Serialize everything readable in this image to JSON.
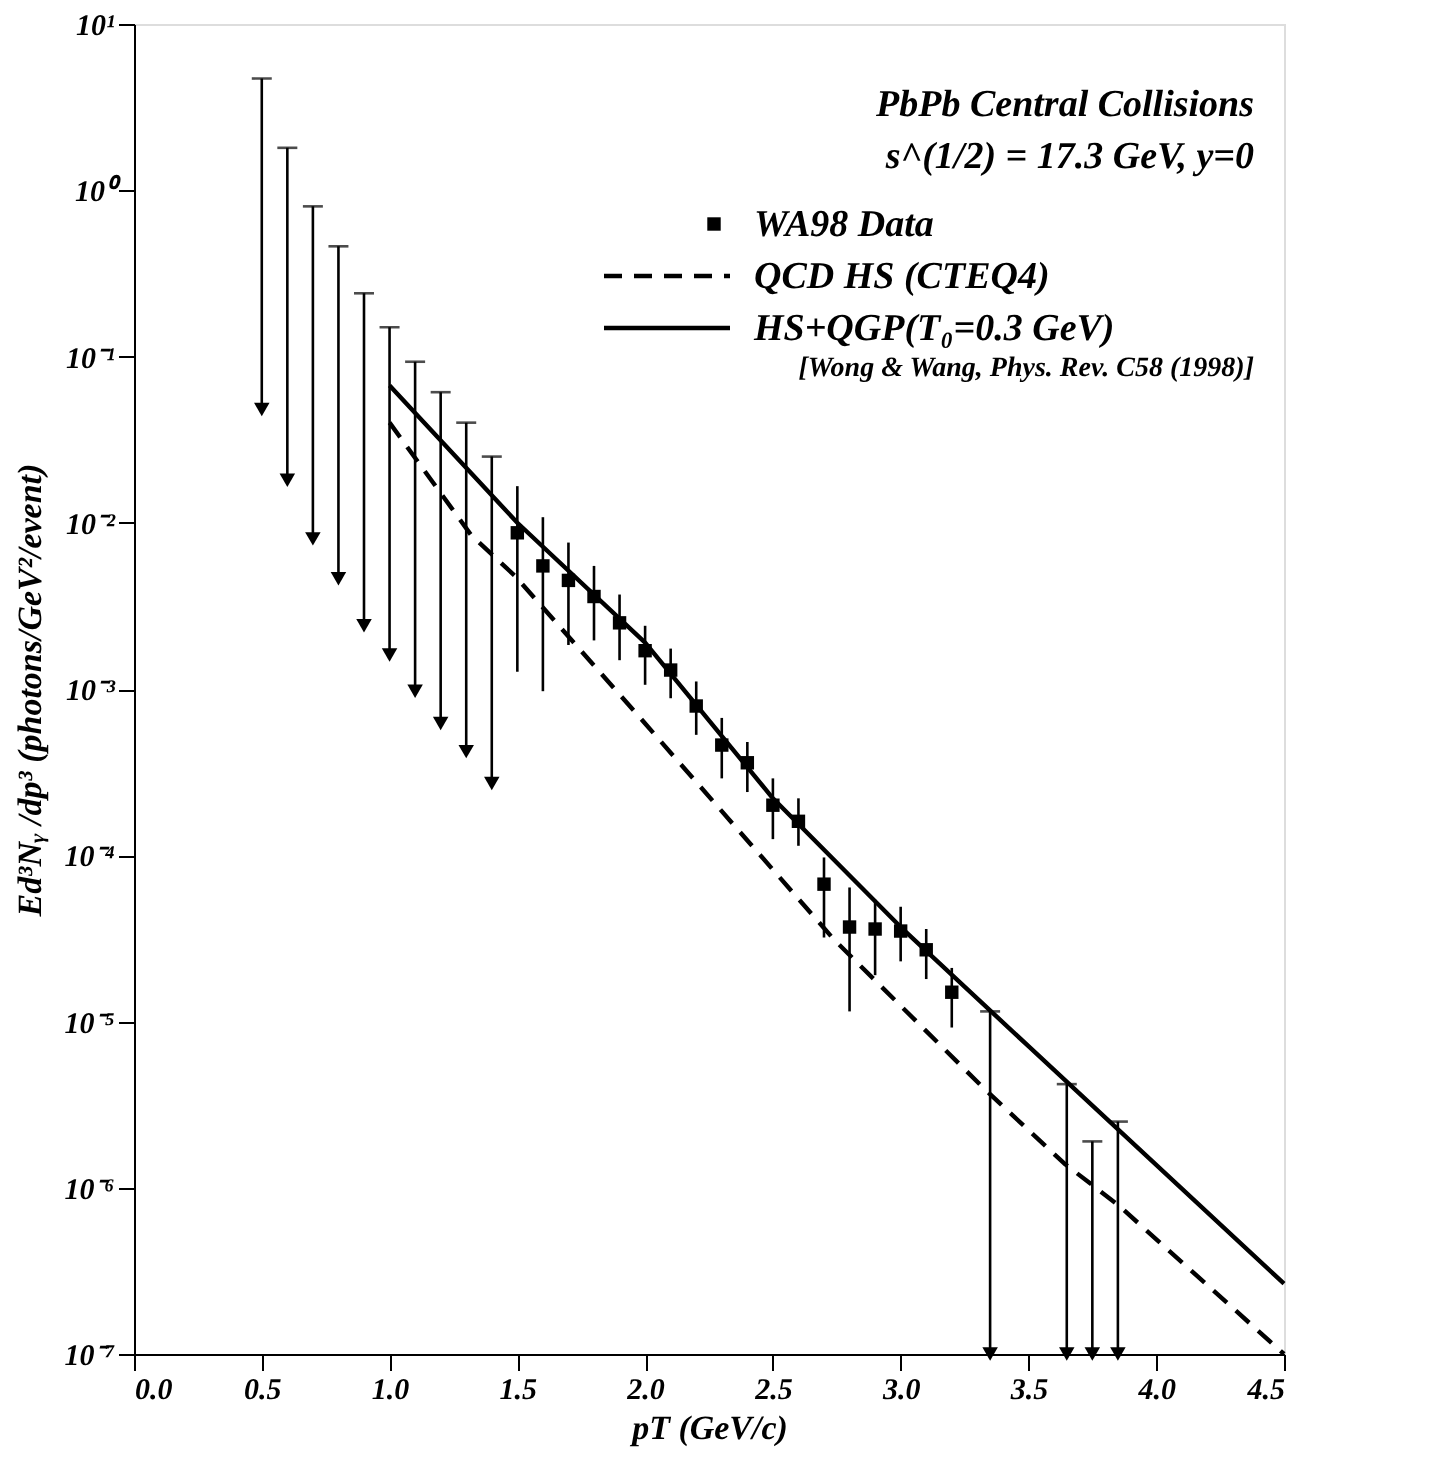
{
  "chart_data": {
    "type": "scatter",
    "xlabel": "pT (GeV/c)",
    "ylabel": "Ed³Nᵧ /dp³ (photons/GeV²/event)",
    "annotations": [
      "PbPb Central Collisions",
      "s^(1/2) = 17.3 GeV,  y=0",
      "[Wong & Wang, Phys. Rev. C58 (1998)]"
    ],
    "xlim": [
      0,
      4.5
    ],
    "ylim": [
      1e-07,
      10
    ],
    "log": "y",
    "grid": false,
    "legend": "top right",
    "xticks": [
      {
        "value": 0,
        "label": "0.0"
      },
      {
        "value": 0.5,
        "label": "0.5"
      },
      {
        "value": 1,
        "label": "1.0"
      },
      {
        "value": 1.5,
        "label": "1.5"
      },
      {
        "value": 2,
        "label": "2.0"
      },
      {
        "value": 2.5,
        "label": "2.5"
      },
      {
        "value": 3,
        "label": "3.0"
      },
      {
        "value": 3.5,
        "label": "3.5"
      },
      {
        "value": 4,
        "label": "4.0"
      },
      {
        "value": 4.5,
        "label": "4.5"
      }
    ],
    "yticks": [
      {
        "value": 1e-07,
        "label": "10⁻⁷"
      },
      {
        "value": 1e-06,
        "label": "10⁻⁶"
      },
      {
        "value": 1e-05,
        "label": "10⁻⁵"
      },
      {
        "value": 0.0001,
        "label": "10⁻⁴"
      },
      {
        "value": 0.001,
        "label": "10⁻³"
      },
      {
        "value": 0.01,
        "label": "10⁻²"
      },
      {
        "value": 0.1,
        "label": "10⁻¹"
      },
      {
        "value": 1,
        "label": "10⁰"
      },
      {
        "value": 10,
        "label": "10¹"
      }
    ],
    "series": [
      {
        "marker": "triangle",
        "color": "#000000",
        "x": [
          0.5,
          0.6,
          0.7,
          0.8,
          0.9,
          1.0,
          1.1,
          1.2,
          1.3,
          1.4,
          3.35,
          3.65,
          3.75,
          3.85
        ],
        "values": [
          0.048,
          0.018,
          0.008,
          0.0046,
          0.0024,
          0.0016,
          0.00097,
          0.00062,
          0.00042,
          0.00027,
          1e-07,
          1e-07,
          1e-07,
          1e-07
        ],
        "errors": [
          [
            0.048,
            4.7
          ],
          [
            0.018,
            1.8
          ],
          [
            0.008,
            0.8
          ],
          [
            0.0046,
            0.46
          ],
          [
            0.0024,
            0.24
          ],
          [
            0.0016,
            0.15
          ],
          [
            0.00097,
            0.093
          ],
          [
            0.00062,
            0.061
          ],
          [
            0.00042,
            0.04
          ],
          [
            0.00027,
            0.025
          ],
          [
            1e-07,
            1.15e-05
          ],
          [
            1e-07,
            4.2e-06
          ],
          [
            1e-07,
            1.9e-06
          ],
          [
            1e-07,
            2.5e-06
          ]
        ]
      },
      {
        "name": "WA98 Data",
        "marker": "square",
        "color": "#000000",
        "x": [
          1.5,
          1.6,
          1.7,
          1.8,
          1.9,
          2.0,
          2.1,
          2.2,
          2.3,
          2.4,
          2.5,
          2.6,
          2.7,
          2.8,
          2.9,
          3.0,
          3.1,
          3.2
        ],
        "values": [
          0.0087,
          0.0055,
          0.0045,
          0.0036,
          0.0025,
          0.0017,
          0.0013,
          0.00079,
          0.00046,
          0.00036,
          0.0002,
          0.00016,
          6.7e-05,
          3.7e-05,
          3.6e-05,
          3.5e-05,
          2.7e-05,
          1.5e-05
        ],
        "errors": [
          [
            0.00127,
            0.0166
          ],
          [
            0.00097,
            0.0108
          ],
          [
            0.00184,
            0.0076
          ],
          [
            0.00196,
            0.0055
          ],
          [
            0.00149,
            0.0037
          ],
          [
            0.00106,
            0.0024
          ],
          [
            0.00088,
            0.00175
          ],
          [
            0.00053,
            0.00111
          ],
          [
            0.00029,
            0.00067
          ],
          [
            0.00024,
            0.00048
          ],
          [
            0.000125,
            0.00029
          ],
          [
            0.000114,
            0.00022
          ],
          [
            3.2e-05,
            9.7e-05
          ],
          [
            1.15e-05,
            6.4e-05
          ],
          [
            1.9e-05,
            5.4e-05
          ],
          [
            2.3e-05,
            4.9e-05
          ],
          [
            1.8e-05,
            3.6e-05
          ],
          [
            9.2e-06,
            2.1e-05
          ]
        ]
      },
      {
        "name": "QCD HS (CTEQ4)",
        "type": "line",
        "line_style": "dashed",
        "color": "#000000",
        "x": [
          1.0,
          1.32,
          1.49,
          2.0,
          2.74,
          3.33,
          3.64,
          3.85,
          4.5
        ],
        "values": [
          0.04,
          0.0084,
          0.0048,
          0.00062,
          3.1e-05,
          3.9e-06,
          1.4e-06,
          7.9e-07,
          1e-07
        ]
      },
      {
        "name": "HS+QGP(T₀=0.3 GeV)",
        "type": "line",
        "line_style": "solid",
        "color": "#000000",
        "x": [
          1.0,
          1.5,
          2.0,
          2.5,
          3.0,
          3.5,
          4.5
        ],
        "values": [
          0.067,
          0.01,
          0.0019,
          0.00022,
          3.7e-05,
          7.1e-06,
          2.65e-07
        ]
      }
    ]
  }
}
